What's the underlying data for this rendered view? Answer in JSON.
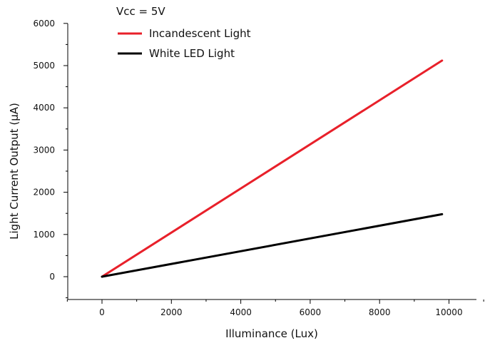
{
  "chart_data": {
    "type": "line",
    "annotation": "Vcc = 5V",
    "xlabel": "Illuminance (Lux)",
    "ylabel": "Light Current Output (μA)",
    "xlim": [
      -1000,
      11000
    ],
    "ylim": [
      -500,
      6000
    ],
    "xticks": [
      0,
      2000,
      4000,
      6000,
      8000,
      10000
    ],
    "yticks": [
      0,
      1000,
      2000,
      3000,
      4000,
      5000,
      6000
    ],
    "xtick_labels": [
      "0",
      "2000",
      "4000",
      "6000",
      "8000",
      "10000"
    ],
    "ytick_labels": [
      "0",
      "1000",
      "2000",
      "3000",
      "4000",
      "5000",
      "6000"
    ],
    "grid": false,
    "legend_position": "top-left",
    "series": [
      {
        "name": "Incandescent Light",
        "color": "#e8202a",
        "x": [
          0,
          9800
        ],
        "y": [
          0,
          5120
        ]
      },
      {
        "name": "White LED Light",
        "color": "#000000",
        "x": [
          0,
          9800
        ],
        "y": [
          0,
          1480
        ]
      }
    ]
  }
}
